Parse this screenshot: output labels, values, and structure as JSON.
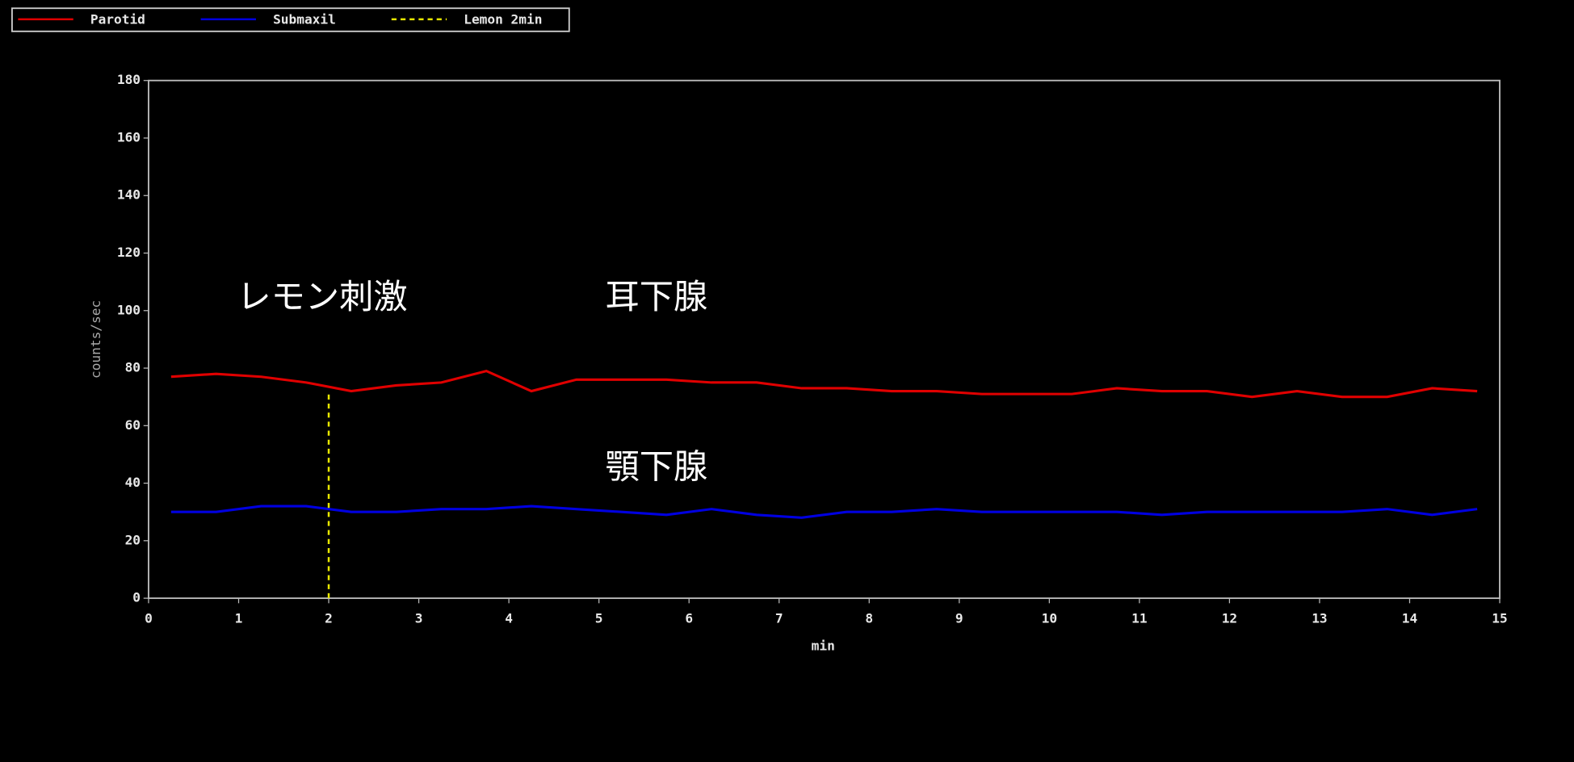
{
  "chart_data": {
    "type": "line",
    "x_label": "min",
    "y_label": "counts/sec",
    "annotations": [
      "レモン刺激",
      "耳下腺",
      "顎下腺"
    ],
    "x": [
      0.25,
      0.75,
      1.25,
      1.75,
      2.25,
      2.75,
      3.25,
      3.75,
      4.25,
      4.75,
      5.25,
      5.75,
      6.25,
      6.75,
      7.25,
      7.75,
      8.25,
      8.75,
      9.25,
      9.75,
      10.25,
      10.75,
      11.25,
      11.75,
      12.25,
      12.75,
      13.25,
      13.75,
      14.25,
      14.75
    ],
    "series": [
      {
        "name": "Parotid",
        "color": "#e00000",
        "values": [
          77,
          78,
          77,
          75,
          72,
          74,
          75,
          79,
          72,
          76,
          76,
          76,
          75,
          75,
          73,
          73,
          72,
          72,
          71,
          71,
          71,
          73,
          72,
          72,
          70,
          72,
          70,
          70,
          73,
          72
        ]
      },
      {
        "name": "Submaxil",
        "color": "#0000e0",
        "values": [
          30,
          30,
          32,
          32,
          30,
          30,
          31,
          31,
          32,
          31,
          30,
          29,
          31,
          29,
          28,
          30,
          30,
          31,
          30,
          30,
          30,
          30,
          29,
          30,
          30,
          30,
          30,
          31,
          29,
          31
        ]
      },
      {
        "name": "Lemon 2min",
        "color": "#e8e800",
        "dashed": true,
        "x": [
          2,
          2
        ],
        "values": [
          0,
          72
        ]
      }
    ],
    "xlim": [
      0,
      15
    ],
    "xticks": [
      0,
      1,
      2,
      3,
      4,
      5,
      6,
      7,
      8,
      9,
      10,
      11,
      12,
      13,
      14,
      15
    ],
    "ylim": [
      0,
      180
    ],
    "yticks": [
      0,
      20,
      40,
      60,
      80,
      100,
      120,
      140,
      160,
      180
    ]
  }
}
